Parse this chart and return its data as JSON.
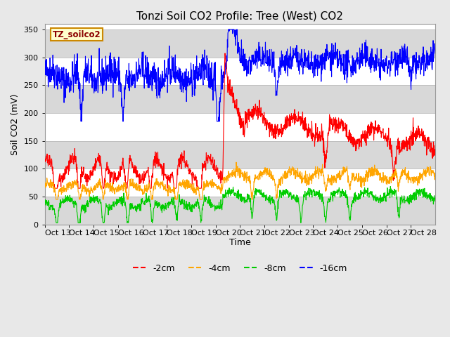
{
  "title": "Tonzi Soil CO2 Profile: Tree (West) CO2",
  "ylabel": "Soil CO2 (mV)",
  "xlabel": "Time",
  "ylim": [
    0,
    360
  ],
  "yticks": [
    0,
    50,
    100,
    150,
    200,
    250,
    300,
    350
  ],
  "legend_labels": [
    "-2cm",
    "-4cm",
    "-8cm",
    "-16cm"
  ],
  "legend_colors": [
    "#ff0000",
    "#ffa500",
    "#00cc00",
    "#0000ff"
  ],
  "watermark_text": "TZ_soilco2",
  "watermark_bg": "#ffffcc",
  "watermark_border": "#cc8800",
  "title_fontsize": 11,
  "axis_fontsize": 9,
  "tick_fontsize": 8,
  "legend_fontsize": 9,
  "band_light": "#ffffff",
  "band_dark": "#d8d8d8",
  "fig_bg": "#e8e8e8"
}
